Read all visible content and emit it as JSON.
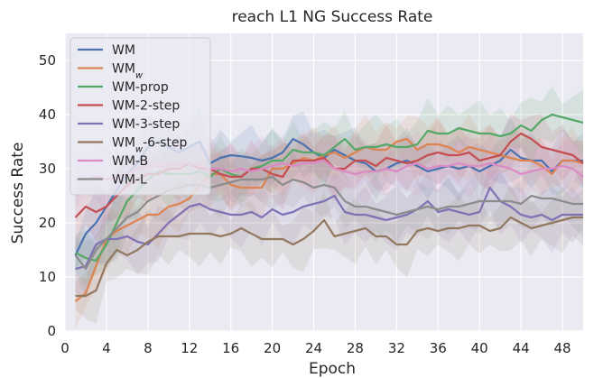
{
  "chart_data": {
    "type": "line",
    "title": "reach L1 NG Success Rate",
    "xlabel": "Epoch",
    "ylabel": "Success Rate",
    "xlim": [
      0,
      50
    ],
    "ylim": [
      0,
      55
    ],
    "xticks": [
      0,
      4,
      8,
      12,
      16,
      20,
      24,
      28,
      32,
      36,
      40,
      44,
      48
    ],
    "yticks": [
      0,
      10,
      20,
      30,
      40,
      50
    ],
    "grid": true,
    "legend": "top-left",
    "x": [
      1,
      2,
      3,
      4,
      5,
      6,
      7,
      8,
      9,
      10,
      11,
      12,
      13,
      14,
      15,
      16,
      17,
      18,
      19,
      20,
      21,
      22,
      23,
      24,
      25,
      26,
      27,
      28,
      29,
      30,
      31,
      32,
      33,
      34,
      35,
      36,
      37,
      38,
      39,
      40,
      41,
      42,
      43,
      44,
      45,
      46,
      47,
      48,
      49,
      50
    ],
    "series": [
      {
        "name": "WM",
        "base": "WM",
        "sub": "",
        "suffix": "",
        "color": "#4c72b0",
        "values": [
          14,
          18,
          20,
          23,
          26,
          29,
          31,
          34,
          35,
          34,
          33,
          34,
          35,
          31,
          32,
          32.5,
          32.3,
          32,
          31.5,
          32,
          33,
          35.5,
          34.5,
          33,
          32,
          33.5,
          32.5,
          31.5,
          31,
          29.5,
          30,
          31,
          31.5,
          30.5,
          29.5,
          30,
          30.5,
          30,
          30.5,
          29.5,
          30.5,
          31.5,
          33.5,
          32,
          31.5,
          31.5,
          29.5,
          31.5,
          31.5,
          31.5
        ]
      },
      {
        "name": "WMw",
        "base": "WM",
        "sub": "w",
        "suffix": "",
        "color": "#dd8452",
        "values": [
          5.5,
          7,
          12,
          17,
          18.5,
          19.5,
          20.5,
          21.5,
          21.5,
          23,
          23.5,
          24.5,
          27,
          29,
          29,
          27,
          26.5,
          26.5,
          26.5,
          30,
          30,
          31,
          32,
          31.5,
          32.5,
          33,
          32,
          33,
          34,
          33.5,
          33.5,
          35,
          35.5,
          33.5,
          34.5,
          34.5,
          34,
          33,
          34,
          33.5,
          33,
          32.5,
          32,
          31.5,
          31.5,
          30.5,
          29,
          31.5,
          31.5,
          31
        ]
      },
      {
        "name": "WM-prop",
        "base": "WM-prop",
        "sub": "",
        "suffix": "",
        "color": "#55a868",
        "values": [
          14.5,
          13.5,
          13,
          16,
          20,
          24,
          26,
          28,
          29.5,
          29,
          29,
          29,
          29.5,
          28.5,
          30,
          29,
          28.5,
          30,
          30.5,
          31.5,
          31.5,
          33.5,
          33,
          33,
          32.5,
          34,
          35.5,
          33.5,
          34,
          34,
          34.5,
          34,
          34,
          34.5,
          37,
          36.5,
          36.5,
          37.5,
          37,
          36.5,
          36.5,
          36,
          36.5,
          38,
          37,
          39,
          40,
          39.5,
          39,
          38.5
        ]
      },
      {
        "name": "WM-2-step",
        "base": "WM-2-step",
        "sub": "",
        "suffix": "",
        "color": "#c44e52",
        "values": [
          21,
          23,
          22,
          23,
          25,
          27,
          28,
          29,
          29,
          30,
          30,
          31,
          30,
          30,
          29,
          28.5,
          28.5,
          30,
          30,
          29,
          28.5,
          31.5,
          31.5,
          31.5,
          32,
          30,
          30,
          31.5,
          31.5,
          30.5,
          32,
          31.5,
          31,
          31.5,
          32.5,
          33,
          32.5,
          32.5,
          33,
          31.5,
          32,
          32.5,
          35,
          36.5,
          35.5,
          34,
          33.5,
          33,
          32.5,
          31
        ]
      },
      {
        "name": "WM-3-step",
        "base": "WM-3-step",
        "sub": "",
        "suffix": "",
        "color": "#8172b3",
        "values": [
          11.5,
          12,
          16,
          17,
          17,
          17.5,
          16.5,
          16,
          18,
          20,
          21.5,
          23,
          23.5,
          22.5,
          22,
          21.5,
          21.5,
          22,
          21,
          22.5,
          21.5,
          22,
          23,
          23.5,
          24,
          25,
          22,
          21.5,
          21.5,
          21,
          20.5,
          21,
          21.5,
          22.5,
          24,
          22,
          22.5,
          22,
          21.5,
          22,
          26.5,
          24,
          23,
          21.5,
          21,
          21.5,
          20.5,
          21.5,
          21.5,
          21.5
        ]
      },
      {
        "name": "WMw-6-step",
        "base": "WM",
        "sub": "w",
        "suffix": "-6-step",
        "color": "#937860",
        "values": [
          6.5,
          6.5,
          7.5,
          12.5,
          15,
          14,
          15,
          16.5,
          17.5,
          17.5,
          17.5,
          18,
          18,
          18,
          17.5,
          18,
          19,
          18,
          17,
          17,
          17,
          16,
          17,
          18.5,
          20.5,
          17.5,
          18,
          18.5,
          19,
          17.5,
          17.5,
          16,
          16,
          18.5,
          19,
          18.5,
          19,
          19,
          19.5,
          19.5,
          18.5,
          19,
          21,
          20,
          19,
          19.5,
          20,
          20.5,
          21,
          21
        ]
      },
      {
        "name": "WM-B",
        "base": "WM-B",
        "sub": "",
        "suffix": "",
        "color": "#da8bc3",
        "values": [
          28,
          28,
          28.5,
          28,
          28.5,
          29,
          30,
          30.5,
          30.5,
          30.5,
          31,
          31,
          30.5,
          30,
          30,
          29.5,
          30,
          29.5,
          30,
          30.5,
          31,
          30.5,
          31,
          31,
          31.5,
          30,
          29.5,
          29,
          29.5,
          29.5,
          30,
          29.5,
          30.5,
          31,
          30,
          30.5,
          30.5,
          31,
          30.5,
          30.5,
          31,
          30.5,
          30,
          29,
          29.5,
          30,
          30,
          30.5,
          30,
          28.5
        ]
      },
      {
        "name": "WM-L",
        "base": "WM-L",
        "sub": "",
        "suffix": "",
        "color": "#8c8c8c",
        "values": [
          14,
          11.5,
          15,
          17,
          19,
          21,
          22,
          24,
          25,
          26,
          26.5,
          27,
          27,
          26.5,
          27,
          27.5,
          28,
          28,
          28,
          28.5,
          27,
          28,
          27.5,
          26.5,
          27,
          26.5,
          24,
          23,
          23,
          22.5,
          22,
          21.5,
          22,
          22.5,
          23,
          22.5,
          23,
          23,
          23.5,
          24,
          24,
          24,
          24,
          23.5,
          25,
          24.5,
          24.5,
          24,
          23.5,
          23.5
        ]
      }
    ]
  }
}
